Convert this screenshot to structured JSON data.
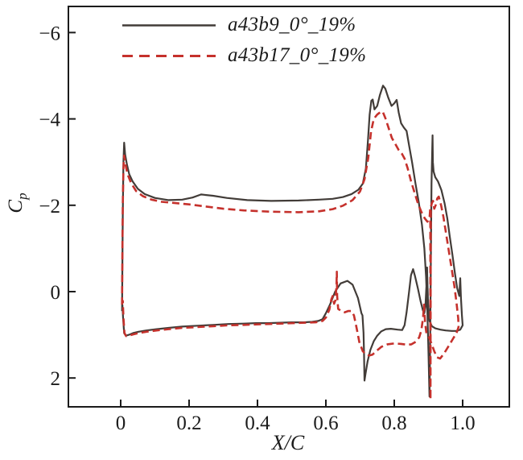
{
  "figure": {
    "background": "#ffffff"
  },
  "chart_data": {
    "type": "line",
    "title": "",
    "xlabel": "X/C",
    "ylabel": "C",
    "ylabel_sub": "p",
    "axis_color": "#1b1b1b",
    "grid": false,
    "legend_position": "top-left-inside",
    "y_axis_inverted": true,
    "xlim": [
      -0.153,
      1.136
    ],
    "ylim": [
      -6.6,
      2.67
    ],
    "x_ticks": {
      "values": [
        0,
        0.2,
        0.4,
        0.6,
        0.8,
        1.0
      ],
      "labels": [
        "0",
        "0.2",
        "0.4",
        "0.6",
        "0.8",
        "1.0"
      ]
    },
    "y_ticks": {
      "values": [
        -6,
        -4,
        -2,
        0,
        2
      ],
      "labels": [
        "−6",
        "−4",
        "−2",
        "0",
        "2"
      ]
    },
    "series": [
      {
        "name": "a43b9_0°_19%",
        "color": "#423c38",
        "style": "solid",
        "points": [
          [
            0.004,
            0.45
          ],
          [
            0.005,
            -0.6
          ],
          [
            0.006,
            -1.8
          ],
          [
            0.008,
            -3.0
          ],
          [
            0.01,
            -3.45
          ],
          [
            0.013,
            -3.18
          ],
          [
            0.018,
            -2.95
          ],
          [
            0.025,
            -2.72
          ],
          [
            0.035,
            -2.55
          ],
          [
            0.05,
            -2.38
          ],
          [
            0.07,
            -2.26
          ],
          [
            0.1,
            -2.17
          ],
          [
            0.14,
            -2.12
          ],
          [
            0.18,
            -2.13
          ],
          [
            0.21,
            -2.18
          ],
          [
            0.235,
            -2.25
          ],
          [
            0.27,
            -2.22
          ],
          [
            0.31,
            -2.17
          ],
          [
            0.37,
            -2.12
          ],
          [
            0.44,
            -2.1
          ],
          [
            0.52,
            -2.11
          ],
          [
            0.58,
            -2.13
          ],
          [
            0.62,
            -2.15
          ],
          [
            0.65,
            -2.19
          ],
          [
            0.675,
            -2.26
          ],
          [
            0.695,
            -2.36
          ],
          [
            0.708,
            -2.5
          ],
          [
            0.717,
            -2.85
          ],
          [
            0.723,
            -3.5
          ],
          [
            0.728,
            -4.1
          ],
          [
            0.733,
            -4.42
          ],
          [
            0.737,
            -4.45
          ],
          [
            0.742,
            -4.22
          ],
          [
            0.75,
            -4.3
          ],
          [
            0.758,
            -4.55
          ],
          [
            0.767,
            -4.77
          ],
          [
            0.774,
            -4.7
          ],
          [
            0.782,
            -4.5
          ],
          [
            0.792,
            -4.3
          ],
          [
            0.8,
            -4.36
          ],
          [
            0.807,
            -4.44
          ],
          [
            0.813,
            -4.15
          ],
          [
            0.82,
            -3.9
          ],
          [
            0.828,
            -3.8
          ],
          [
            0.836,
            -3.72
          ],
          [
            0.843,
            -3.4
          ],
          [
            0.852,
            -3.0
          ],
          [
            0.862,
            -2.5
          ],
          [
            0.872,
            -2.05
          ],
          [
            0.881,
            -1.55
          ],
          [
            0.888,
            -1.0
          ],
          [
            0.893,
            -0.35
          ],
          [
            0.897,
            0.5
          ],
          [
            0.9,
            1.4
          ],
          [
            0.903,
            2.43
          ],
          [
            0.905,
            1.2
          ],
          [
            0.907,
            -0.8
          ],
          [
            0.909,
            -2.5
          ],
          [
            0.911,
            -3.3
          ],
          [
            0.912,
            -3.62
          ],
          [
            0.913,
            -3.0
          ],
          [
            0.915,
            -2.78
          ],
          [
            0.92,
            -2.65
          ],
          [
            0.928,
            -2.55
          ],
          [
            0.938,
            -2.35
          ],
          [
            0.947,
            -2.05
          ],
          [
            0.955,
            -1.7
          ],
          [
            0.962,
            -1.3
          ],
          [
            0.97,
            -0.85
          ],
          [
            0.978,
            -0.4
          ],
          [
            0.984,
            -0.08
          ],
          [
            0.99,
            0.1
          ],
          [
            0.993,
            -0.31
          ],
          [
            0.995,
            0.15
          ],
          [
            0.998,
            0.55
          ],
          [
            1.0,
            0.78
          ],
          [
            0.993,
            0.88
          ],
          [
            0.982,
            0.91
          ],
          [
            0.968,
            0.91
          ],
          [
            0.95,
            0.9
          ],
          [
            0.935,
            0.88
          ],
          [
            0.92,
            0.85
          ],
          [
            0.91,
            0.8
          ],
          [
            0.903,
            0.68
          ],
          [
            0.899,
            0.3
          ],
          [
            0.897,
            -0.25
          ],
          [
            0.896,
            -0.56
          ],
          [
            0.894,
            -0.15
          ],
          [
            0.891,
            0.35
          ],
          [
            0.888,
            0.5
          ],
          [
            0.884,
            0.44
          ],
          [
            0.877,
            0.22
          ],
          [
            0.869,
            -0.08
          ],
          [
            0.861,
            -0.35
          ],
          [
            0.855,
            -0.52
          ],
          [
            0.849,
            -0.38
          ],
          [
            0.843,
            0.02
          ],
          [
            0.836,
            0.48
          ],
          [
            0.83,
            0.78
          ],
          [
            0.823,
            0.89
          ],
          [
            0.81,
            0.88
          ],
          [
            0.79,
            0.86
          ],
          [
            0.775,
            0.87
          ],
          [
            0.762,
            0.92
          ],
          [
            0.75,
            1.02
          ],
          [
            0.74,
            1.15
          ],
          [
            0.73,
            1.35
          ],
          [
            0.722,
            1.62
          ],
          [
            0.716,
            1.9
          ],
          [
            0.713,
            2.06
          ],
          [
            0.7115,
            1.4
          ],
          [
            0.71,
            0.95
          ],
          [
            0.707,
            0.55
          ],
          [
            0.704,
            0.5
          ],
          [
            0.694,
            0.15
          ],
          [
            0.678,
            -0.16
          ],
          [
            0.663,
            -0.25
          ],
          [
            0.643,
            -0.19
          ],
          [
            0.627,
            0.0
          ],
          [
            0.612,
            0.3
          ],
          [
            0.6,
            0.5
          ],
          [
            0.59,
            0.64
          ],
          [
            0.578,
            0.68
          ],
          [
            0.56,
            0.7
          ],
          [
            0.535,
            0.71
          ],
          [
            0.5,
            0.71
          ],
          [
            0.465,
            0.72
          ],
          [
            0.43,
            0.73
          ],
          [
            0.395,
            0.73
          ],
          [
            0.36,
            0.74
          ],
          [
            0.315,
            0.75
          ],
          [
            0.27,
            0.77
          ],
          [
            0.225,
            0.79
          ],
          [
            0.18,
            0.81
          ],
          [
            0.14,
            0.84
          ],
          [
            0.105,
            0.87
          ],
          [
            0.075,
            0.9
          ],
          [
            0.052,
            0.93
          ],
          [
            0.036,
            0.96
          ],
          [
            0.024,
            1.0
          ],
          [
            0.015,
            1.02
          ],
          [
            0.01,
            0.96
          ],
          [
            0.007,
            0.62
          ],
          [
            0.005,
            0.3
          ]
        ]
      },
      {
        "name": "a43b17_0°_19%",
        "color": "#c5312c",
        "style": "dashed",
        "points": [
          [
            0.004,
            0.3
          ],
          [
            0.005,
            -0.9
          ],
          [
            0.006,
            -2.0
          ],
          [
            0.008,
            -2.85
          ],
          [
            0.01,
            -3.15
          ],
          [
            0.014,
            -2.95
          ],
          [
            0.02,
            -2.72
          ],
          [
            0.03,
            -2.52
          ],
          [
            0.045,
            -2.33
          ],
          [
            0.065,
            -2.21
          ],
          [
            0.09,
            -2.13
          ],
          [
            0.12,
            -2.08
          ],
          [
            0.16,
            -2.05
          ],
          [
            0.2,
            -2.02
          ],
          [
            0.25,
            -1.97
          ],
          [
            0.3,
            -1.92
          ],
          [
            0.36,
            -1.88
          ],
          [
            0.44,
            -1.85
          ],
          [
            0.52,
            -1.84
          ],
          [
            0.58,
            -1.86
          ],
          [
            0.62,
            -1.91
          ],
          [
            0.65,
            -1.99
          ],
          [
            0.678,
            -2.12
          ],
          [
            0.7,
            -2.32
          ],
          [
            0.713,
            -2.6
          ],
          [
            0.724,
            -3.1
          ],
          [
            0.732,
            -3.7
          ],
          [
            0.74,
            -4.0
          ],
          [
            0.75,
            -4.1
          ],
          [
            0.76,
            -4.16
          ],
          [
            0.766,
            -4.17
          ],
          [
            0.774,
            -4.02
          ],
          [
            0.783,
            -3.8
          ],
          [
            0.793,
            -3.56
          ],
          [
            0.803,
            -3.42
          ],
          [
            0.813,
            -3.28
          ],
          [
            0.822,
            -3.2
          ],
          [
            0.83,
            -3.08
          ],
          [
            0.839,
            -2.86
          ],
          [
            0.849,
            -2.56
          ],
          [
            0.859,
            -2.3
          ],
          [
            0.869,
            -2.05
          ],
          [
            0.879,
            -1.85
          ],
          [
            0.889,
            -1.7
          ],
          [
            0.897,
            -1.62
          ],
          [
            0.903,
            -1.7
          ],
          [
            0.9055,
            -1.95
          ],
          [
            0.906,
            2.5
          ],
          [
            0.9068,
            -1.95
          ],
          [
            0.91,
            -2.05
          ],
          [
            0.9135,
            -2.1
          ],
          [
            0.917,
            -1.92
          ],
          [
            0.921,
            -2.0
          ],
          [
            0.926,
            -2.16
          ],
          [
            0.93,
            -2.2
          ],
          [
            0.937,
            -2.0
          ],
          [
            0.944,
            -1.72
          ],
          [
            0.952,
            -1.32
          ],
          [
            0.96,
            -0.92
          ],
          [
            0.968,
            -0.52
          ],
          [
            0.976,
            -0.12
          ],
          [
            0.982,
            0.25
          ],
          [
            0.987,
            0.62
          ],
          [
            0.988,
            0.82
          ],
          [
            0.982,
            0.96
          ],
          [
            0.971,
            1.1
          ],
          [
            0.959,
            1.26
          ],
          [
            0.946,
            1.43
          ],
          [
            0.934,
            1.55
          ],
          [
            0.925,
            1.52
          ],
          [
            0.917,
            1.38
          ],
          [
            0.909,
            1.2
          ],
          [
            0.901,
            1.05
          ],
          [
            0.894,
            0.97
          ],
          [
            0.89,
            0.72
          ],
          [
            0.887,
            0.3
          ],
          [
            0.884,
            0.62
          ],
          [
            0.879,
            0.9
          ],
          [
            0.873,
            1.06
          ],
          [
            0.863,
            1.16
          ],
          [
            0.85,
            1.22
          ],
          [
            0.838,
            1.23
          ],
          [
            0.82,
            1.21
          ],
          [
            0.8,
            1.2
          ],
          [
            0.78,
            1.22
          ],
          [
            0.762,
            1.28
          ],
          [
            0.747,
            1.38
          ],
          [
            0.736,
            1.46
          ],
          [
            0.727,
            1.48
          ],
          [
            0.718,
            1.46
          ],
          [
            0.708,
            1.38
          ],
          [
            0.698,
            1.17
          ],
          [
            0.69,
            0.85
          ],
          [
            0.682,
            0.55
          ],
          [
            0.675,
            0.45
          ],
          [
            0.665,
            0.45
          ],
          [
            0.655,
            0.48
          ],
          [
            0.645,
            0.45
          ],
          [
            0.636,
            0.4
          ],
          [
            0.633,
            0.1
          ],
          [
            0.632,
            -0.46
          ],
          [
            0.631,
            -0.15
          ],
          [
            0.628,
            0.2
          ],
          [
            0.624,
            0.28
          ],
          [
            0.62,
            0.1
          ],
          [
            0.616,
            0.18
          ],
          [
            0.61,
            0.42
          ],
          [
            0.6,
            0.6
          ],
          [
            0.59,
            0.68
          ],
          [
            0.57,
            0.71
          ],
          [
            0.54,
            0.72
          ],
          [
            0.505,
            0.73
          ],
          [
            0.468,
            0.74
          ],
          [
            0.432,
            0.75
          ],
          [
            0.396,
            0.76
          ],
          [
            0.36,
            0.77
          ],
          [
            0.315,
            0.78
          ],
          [
            0.27,
            0.8
          ],
          [
            0.225,
            0.82
          ],
          [
            0.18,
            0.84
          ],
          [
            0.14,
            0.87
          ],
          [
            0.105,
            0.9
          ],
          [
            0.075,
            0.93
          ],
          [
            0.052,
            0.96
          ],
          [
            0.036,
            0.99
          ],
          [
            0.024,
            1.02
          ],
          [
            0.016,
            1.03
          ],
          [
            0.011,
            0.96
          ],
          [
            0.008,
            0.6
          ],
          [
            0.006,
            0.2
          ]
        ]
      }
    ]
  }
}
